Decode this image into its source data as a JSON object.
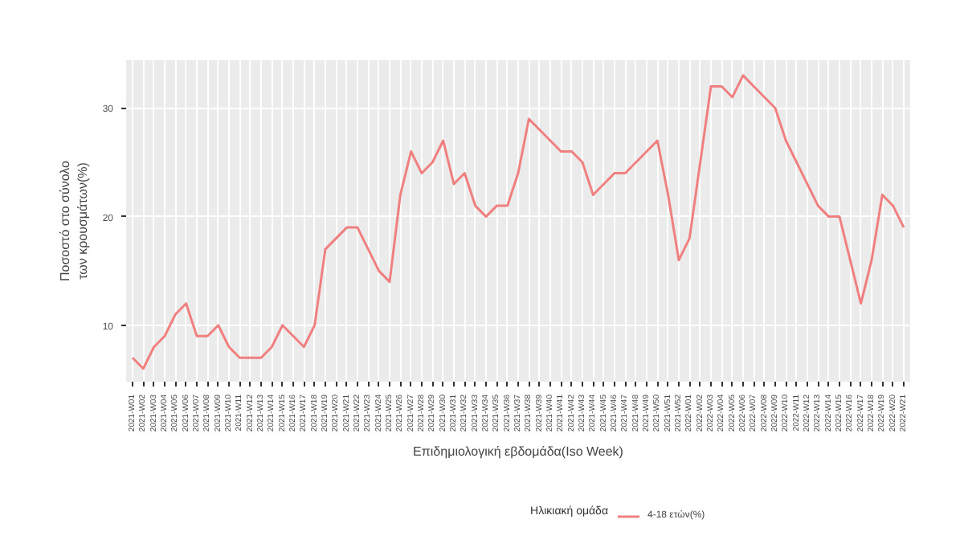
{
  "chart_data": {
    "type": "line",
    "xlabel": "Επιδημιολογική εβδομάδα(Iso Week)",
    "ylabel": "Ποσοστό στο σύνολο\nτων κρουσμάτων(%)",
    "legend_title": "Ηλικιακή ομάδα",
    "categories": [
      "2021-W01",
      "2021-W02",
      "2021-W03",
      "2021-W04",
      "2021-W05",
      "2021-W06",
      "2021-W07",
      "2021-W08",
      "2021-W09",
      "2021-W10",
      "2021-W11",
      "2021-W12",
      "2021-W13",
      "2021-W14",
      "2021-W15",
      "2021-W16",
      "2021-W17",
      "2021-W18",
      "2021-W19",
      "2021-W20",
      "2021-W21",
      "2021-W22",
      "2021-W23",
      "2021-W24",
      "2021-W25",
      "2021-W26",
      "2021-W27",
      "2021-W28",
      "2021-W29",
      "2021-W30",
      "2021-W31",
      "2021-W32",
      "2021-W33",
      "2021-W34",
      "2021-W35",
      "2021-W36",
      "2021-W37",
      "2021-W38",
      "2021-W39",
      "2021-W40",
      "2021-W41",
      "2021-W42",
      "2021-W43",
      "2021-W44",
      "2021-W45",
      "2021-W46",
      "2021-W47",
      "2021-W48",
      "2021-W49",
      "2021-W50",
      "2021-W51",
      "2021-W52",
      "2022-W01",
      "2022-W02",
      "2022-W03",
      "2022-W04",
      "2022-W05",
      "2022-W06",
      "2022-W07",
      "2022-W08",
      "2022-W09",
      "2022-W10",
      "2022-W11",
      "2022-W12",
      "2022-W13",
      "2022-W14",
      "2022-W15",
      "2022-W16",
      "2022-W17",
      "2022-W18",
      "2022-W19",
      "2022-W20",
      "2022-W21"
    ],
    "series": [
      {
        "name": "4-18 ετών(%)",
        "color": "#f08080",
        "values": [
          7,
          6,
          8,
          9,
          11,
          12,
          9,
          9,
          10,
          8,
          7,
          7,
          7,
          8,
          10,
          9,
          8,
          10,
          17,
          18,
          19,
          19,
          17,
          15,
          14,
          22,
          26,
          24,
          25,
          27,
          23,
          24,
          21,
          20,
          21,
          21,
          24,
          29,
          28,
          27,
          26,
          26,
          25,
          22,
          23,
          24,
          24,
          25,
          26,
          27,
          22,
          16,
          18,
          25,
          32,
          32,
          31,
          33,
          32,
          31,
          30,
          27,
          25,
          23,
          21,
          20,
          20,
          16,
          12,
          16,
          22,
          21,
          19
        ]
      }
    ],
    "ylim": [
      4.8,
      34.4
    ],
    "yticks": [
      10,
      20,
      30
    ],
    "grid": true,
    "legend": "bottom",
    "marker": "none",
    "line_style": "solid"
  }
}
